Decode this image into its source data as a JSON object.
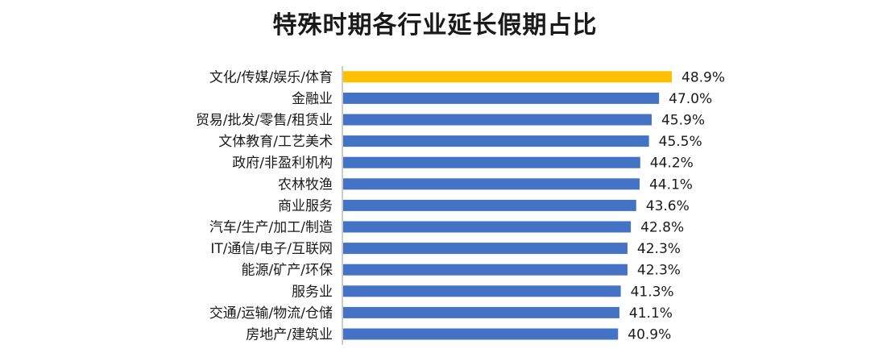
{
  "chart_data": {
    "type": "bar",
    "orientation": "horizontal",
    "title": "特殊时期各行业延长假期占比",
    "categories": [
      "文化/传媒/娱乐/体育",
      "金融业",
      "贸易/批发/零售/租赁业",
      "文体教育/工艺美术",
      "政府/非盈利机构",
      "农林牧渔",
      "商业服务",
      "汽车/生产/加工/制造",
      "IT/通信/电子/互联网",
      "能源/矿产/环保",
      "服务业",
      "交通/运输/物流/仓储",
      "房地产/建筑业"
    ],
    "values": [
      48.9,
      47.0,
      45.9,
      45.5,
      44.2,
      44.1,
      43.6,
      42.8,
      42.3,
      42.3,
      41.3,
      41.1,
      40.9
    ],
    "value_labels": [
      "48.9%",
      "47.0%",
      "45.9%",
      "45.5%",
      "44.2%",
      "44.1%",
      "43.6%",
      "42.8%",
      "42.3%",
      "42.3%",
      "41.3%",
      "41.1%",
      "40.9%"
    ],
    "highlight_index": 0,
    "colors": {
      "bar": "#4472C4",
      "highlight": "#FFC000",
      "axis": "#999999"
    },
    "grid": false,
    "legend": "none"
  }
}
